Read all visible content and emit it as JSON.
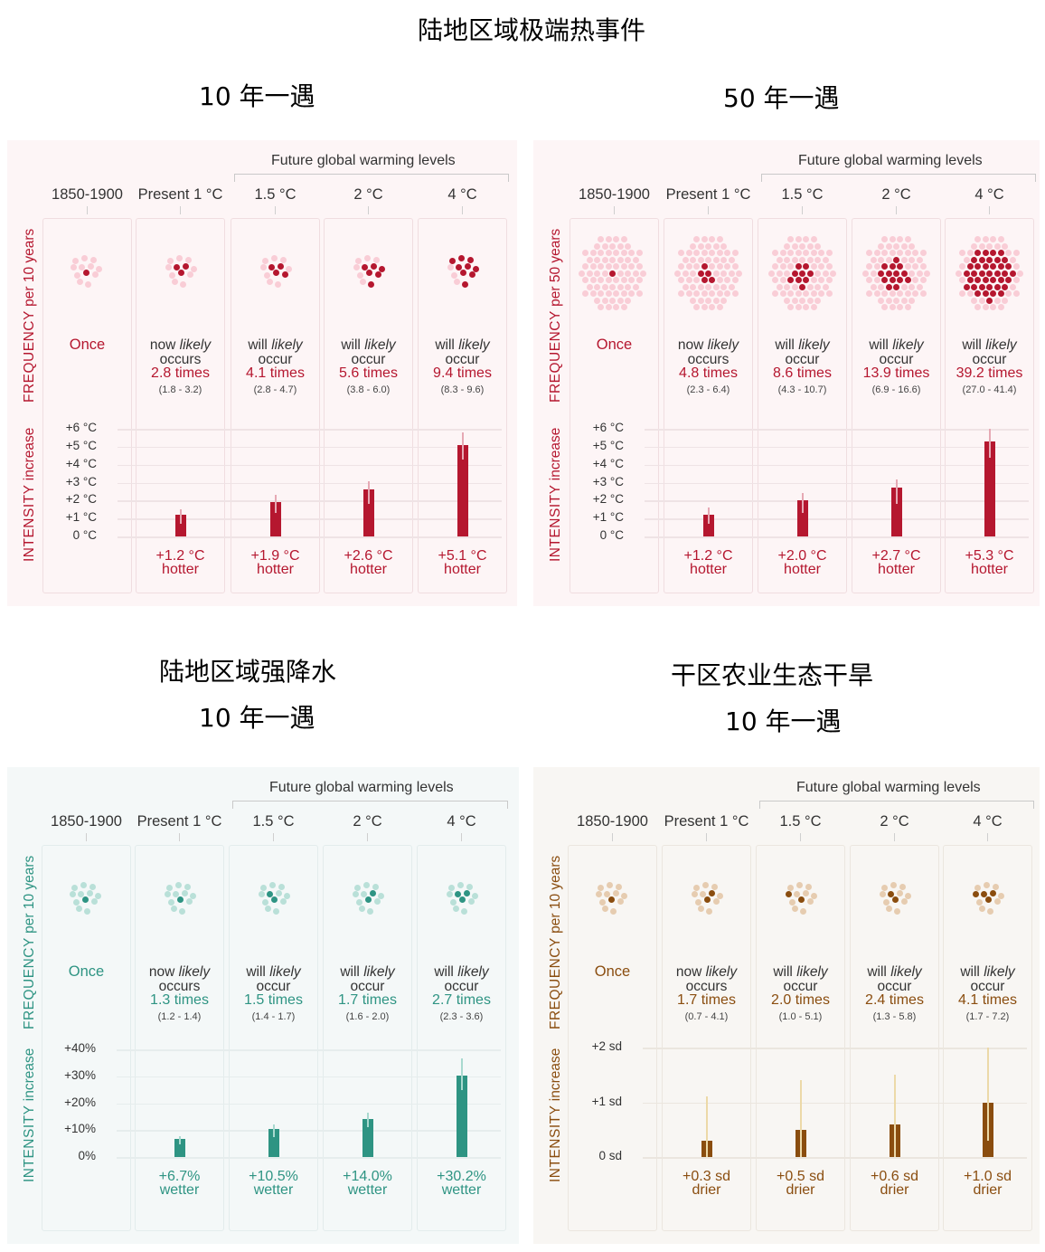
{
  "titles": {
    "heat_main": "陆地区域极端热事件",
    "heat_10yr": "10 年一遇",
    "heat_50yr": "50 年一遇",
    "rain_main": "陆地区域强降水",
    "rain_10yr": "10 年一遇",
    "drought_main": "干区农业生态干旱",
    "drought_10yr": "10 年一遇"
  },
  "common": {
    "future_levels_label": "Future global warming levels",
    "columns": [
      "1850-1900",
      "Present 1 °C",
      "1.5 °C",
      "2 °C",
      "4 °C"
    ],
    "once_label": "Once",
    "freq_axis_bold": "FREQUENCY",
    "intensity_axis_bold": "INTENSITY",
    "intensity_axis_rest": " increase",
    "now_likely": "now",
    "will_likely": "will",
    "likely": "likely",
    "occurs": "occurs",
    "occur": "occur"
  },
  "panels": [
    {
      "id": "heat10",
      "freq_axis_rest": " per 10 years",
      "colors": {
        "accent": "#b5172f",
        "light": "#f9cdd6",
        "bg": "#fdf5f6",
        "border": "#f0dde0",
        "grid": "#efe3e5",
        "err": "#e6a9b4"
      },
      "frequency": [
        {
          "times": "",
          "range": ""
        },
        {
          "times": "2.8 times",
          "range": "(1.8 - 3.2)"
        },
        {
          "times": "4.1 times",
          "range": "(2.8 - 4.7)"
        },
        {
          "times": "5.6 times",
          "range": "(3.8 - 6.0)"
        },
        {
          "times": "9.4 times",
          "range": "(8.3 - 9.6)"
        }
      ],
      "yticks": [
        "+6 °C",
        "+5 °C",
        "+4 °C",
        "+3 °C",
        "+2 °C",
        "+1 °C",
        "0 °C"
      ],
      "values": [
        {
          "label": "+1.2 °C",
          "word": "hotter"
        },
        {
          "label": "+1.9 °C",
          "word": "hotter"
        },
        {
          "label": "+2.6 °C",
          "word": "hotter"
        },
        {
          "label": "+5.1 °C",
          "word": "hotter"
        }
      ]
    },
    {
      "id": "heat50",
      "freq_axis_rest": " per 50 years",
      "colors": {
        "accent": "#b5172f",
        "light": "#f9cdd6",
        "bg": "#fdf5f6",
        "border": "#f0dde0",
        "grid": "#efe3e5",
        "err": "#e6a9b4"
      },
      "frequency": [
        {
          "times": "",
          "range": ""
        },
        {
          "times": "4.8 times",
          "range": "(2.3 - 6.4)"
        },
        {
          "times": "8.6 times",
          "range": "(4.3 - 10.7)"
        },
        {
          "times": "13.9 times",
          "range": "(6.9 - 16.6)"
        },
        {
          "times": "39.2 times",
          "range": "(27.0 - 41.4)"
        }
      ],
      "yticks": [
        "+6 °C",
        "+5 °C",
        "+4 °C",
        "+3 °C",
        "+2 °C",
        "+1 °C",
        "0 °C"
      ],
      "values": [
        {
          "label": "+1.2 °C",
          "word": "hotter"
        },
        {
          "label": "+2.0 °C",
          "word": "hotter"
        },
        {
          "label": "+2.7 °C",
          "word": "hotter"
        },
        {
          "label": "+5.3 °C",
          "word": "hotter"
        }
      ]
    },
    {
      "id": "rain10",
      "freq_axis_rest": " per 10 years",
      "colors": {
        "accent": "#2e9483",
        "light": "#b9e0d8",
        "bg": "#f4f8f8",
        "border": "#e3ecec",
        "grid": "#e6eded",
        "err": "#a8d9cf"
      },
      "frequency": [
        {
          "times": "",
          "range": ""
        },
        {
          "times": "1.3 times",
          "range": "(1.2 - 1.4)"
        },
        {
          "times": "1.5 times",
          "range": "(1.4 - 1.7)"
        },
        {
          "times": "1.7 times",
          "range": "(1.6 - 2.0)"
        },
        {
          "times": "2.7 times",
          "range": "(2.3 - 3.6)"
        }
      ],
      "yticks": [
        "+40%",
        "+30%",
        "+20%",
        "+10%",
        "0%"
      ],
      "values": [
        {
          "label": "+6.7%",
          "word": "wetter"
        },
        {
          "label": "+10.5%",
          "word": "wetter"
        },
        {
          "label": "+14.0%",
          "word": "wetter"
        },
        {
          "label": "+30.2%",
          "word": "wetter"
        }
      ]
    },
    {
      "id": "drought10",
      "freq_axis_rest": " per 10 years",
      "colors": {
        "accent": "#8a4d0f",
        "light": "#e6ccb0",
        "bg": "#f8f6f3",
        "border": "#ebe6df",
        "grid": "#ebe6df",
        "err": "#ecd9a8"
      },
      "frequency": [
        {
          "times": "",
          "range": ""
        },
        {
          "times": "1.7 times",
          "range": "(0.7 - 4.1)"
        },
        {
          "times": "2.0 times",
          "range": "(1.0 - 5.1)"
        },
        {
          "times": "2.4 times",
          "range": "(1.3 - 5.8)"
        },
        {
          "times": "4.1 times",
          "range": "(1.7 - 7.2)"
        }
      ],
      "yticks": [
        "+2 sd",
        "+1 sd",
        "0 sd"
      ],
      "values": [
        {
          "label": "+0.3 sd",
          "word": "drier"
        },
        {
          "label": "+0.5 sd",
          "word": "drier"
        },
        {
          "label": "+0.6 sd",
          "word": "drier"
        },
        {
          "label": "+1.0 sd",
          "word": "drier"
        }
      ]
    }
  ],
  "chart_data": [
    {
      "type": "bar",
      "title": "陆地区域极端热事件 — 10 年一遇",
      "categories": [
        "Present 1 °C",
        "1.5 °C",
        "2 °C",
        "4 °C"
      ],
      "baseline_category": "1850-1900",
      "frequency_times": [
        2.8,
        4.1,
        5.6,
        9.4
      ],
      "frequency_ranges": [
        [
          1.8,
          3.2
        ],
        [
          2.8,
          4.7
        ],
        [
          3.8,
          6.0
        ],
        [
          8.3,
          9.6
        ]
      ],
      "values": [
        1.2,
        1.9,
        2.6,
        5.1
      ],
      "error_ranges": [
        [
          0.7,
          1.5
        ],
        [
          1.3,
          2.3
        ],
        [
          1.8,
          3.1
        ],
        [
          4.3,
          5.8
        ]
      ],
      "ylabel": "INTENSITY increase (°C)",
      "freq_label": "FREQUENCY per 10 years",
      "ylim": [
        0,
        6
      ]
    },
    {
      "type": "bar",
      "title": "陆地区域极端热事件 — 50 年一遇",
      "categories": [
        "Present 1 °C",
        "1.5 °C",
        "2 °C",
        "4 °C"
      ],
      "baseline_category": "1850-1900",
      "frequency_times": [
        4.8,
        8.6,
        13.9,
        39.2
      ],
      "frequency_ranges": [
        [
          2.3,
          6.4
        ],
        [
          4.3,
          10.7
        ],
        [
          6.9,
          16.6
        ],
        [
          27.0,
          41.4
        ]
      ],
      "values": [
        1.2,
        2.0,
        2.7,
        5.3
      ],
      "error_ranges": [
        [
          0.7,
          1.6
        ],
        [
          1.3,
          2.4
        ],
        [
          1.8,
          3.2
        ],
        [
          4.4,
          6.0
        ]
      ],
      "ylabel": "INTENSITY increase (°C)",
      "freq_label": "FREQUENCY per 50 years",
      "ylim": [
        0,
        6
      ]
    },
    {
      "type": "bar",
      "title": "陆地区域强降水 — 10 年一遇",
      "categories": [
        "Present 1 °C",
        "1.5 °C",
        "2 °C",
        "4 °C"
      ],
      "baseline_category": "1850-1900",
      "frequency_times": [
        1.3,
        1.5,
        1.7,
        2.7
      ],
      "frequency_ranges": [
        [
          1.2,
          1.4
        ],
        [
          1.4,
          1.7
        ],
        [
          1.6,
          2.0
        ],
        [
          2.3,
          3.6
        ]
      ],
      "values": [
        6.7,
        10.5,
        14.0,
        30.2
      ],
      "error_ranges": [
        [
          4.8,
          7.7
        ],
        [
          7.5,
          12.0
        ],
        [
          11.0,
          16.5
        ],
        [
          25.0,
          36.5
        ]
      ],
      "ylabel": "INTENSITY increase (%)",
      "freq_label": "FREQUENCY per 10 years",
      "ylim": [
        0,
        40
      ]
    },
    {
      "type": "bar",
      "title": "干区农业生态干旱 — 10 年一遇",
      "categories": [
        "Present 1 °C",
        "1.5 °C",
        "2 °C",
        "4 °C"
      ],
      "baseline_category": "1850-1900",
      "frequency_times": [
        1.7,
        2.0,
        2.4,
        4.1
      ],
      "frequency_ranges": [
        [
          0.7,
          4.1
        ],
        [
          1.0,
          5.1
        ],
        [
          1.3,
          5.8
        ],
        [
          1.7,
          7.2
        ]
      ],
      "values": [
        0.3,
        0.5,
        0.6,
        1.0
      ],
      "error_ranges": [
        [
          0.0,
          1.1
        ],
        [
          0.0,
          1.4
        ],
        [
          0.0,
          1.5
        ],
        [
          0.3,
          2.0
        ]
      ],
      "ylabel": "INTENSITY increase (sd)",
      "freq_label": "FREQUENCY per 10 years",
      "ylim": [
        0,
        2
      ]
    }
  ]
}
